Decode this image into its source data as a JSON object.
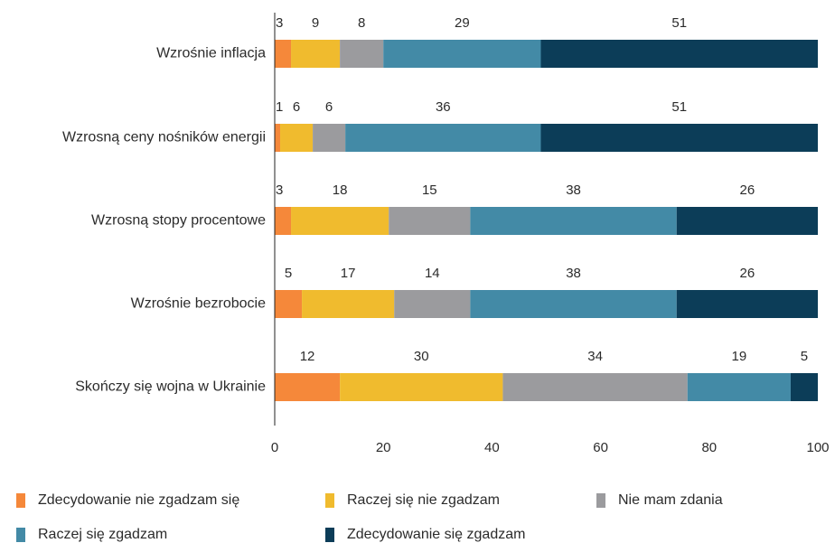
{
  "chart_data": {
    "type": "bar",
    "orientation": "horizontal",
    "stacked": true,
    "categories": [
      "Wzrośnie inflacja",
      "Wzrosną ceny nośników energii",
      "Wzrosną stopy procentowe",
      "Wzrośnie bezrobocie",
      "Skończy się wojna w Ukrainie"
    ],
    "series": [
      {
        "name": "Zdecydowanie nie zgadzam się",
        "color": "#F5883A",
        "values": [
          3,
          1,
          3,
          5,
          12
        ]
      },
      {
        "name": "Raczej się nie zgadzam",
        "color": "#F0BB2E",
        "values": [
          9,
          6,
          18,
          17,
          30
        ]
      },
      {
        "name": "Nie mam zdania",
        "color": "#9B9B9E",
        "values": [
          8,
          6,
          15,
          14,
          34
        ]
      },
      {
        "name": "Raczej się zgadzam",
        "color": "#438AA6",
        "values": [
          29,
          36,
          38,
          38,
          19
        ]
      },
      {
        "name": "Zdecydowanie się zgadzam",
        "color": "#0C3D58",
        "values": [
          51,
          51,
          26,
          26,
          5
        ]
      }
    ],
    "xlim": [
      0,
      100
    ],
    "xticks": [
      "0",
      "20",
      "40",
      "60",
      "80",
      "100"
    ],
    "grid": false,
    "legend_position": "bottom",
    "title": "",
    "xlabel": "",
    "ylabel": ""
  }
}
